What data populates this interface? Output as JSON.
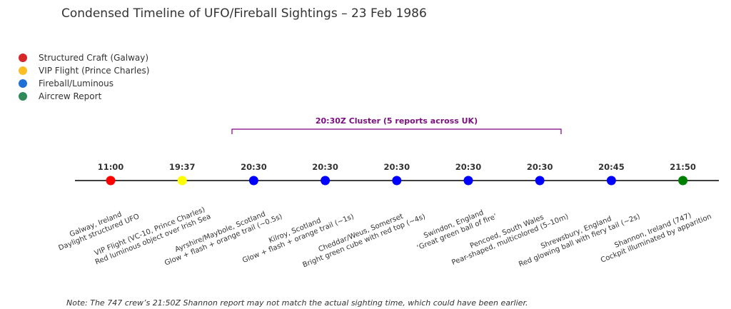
{
  "title": "Condensed Timeline of UFO/Fireball Sightings – 23 Feb 1986",
  "note": "Note: The 747 crew’s 21:50Z Shannon report may not match the actual sighting time, which could have been earlier.",
  "colors": {
    "structured_craft": "#d62728",
    "vip_flight": "#ffcc00",
    "fireball": "#0000ff",
    "aircrew": "#1e8c1e",
    "cluster": "#800080",
    "axis": "#000000"
  },
  "legend": [
    {
      "label": "Structured Craft (Galway)",
      "color": "#d62728"
    },
    {
      "label": "VIP Flight (Prince Charles)",
      "color": "#fbbf24"
    },
    {
      "label": "Fireball/Luminous",
      "color": "#1f6fd6"
    },
    {
      "label": "Aircrew Report",
      "color": "#2e8b57"
    }
  ],
  "chart_data": {
    "type": "timeline",
    "title": "Condensed Timeline of UFO/Fireball Sightings – 23 Feb 1986",
    "cluster": {
      "label": "20:30Z Cluster (5 reports across UK)",
      "from_event": 2,
      "to_event": 6
    },
    "events": [
      {
        "time": "11:00",
        "category": "Structured Craft (Galway)",
        "color": "#ff0000",
        "line1": "Galway, Ireland",
        "line2": "Daylight structured UFO"
      },
      {
        "time": "19:37",
        "category": "VIP Flight (Prince Charles)",
        "color": "#ffff00",
        "line1": "VIP Flight (VC-10, Prince Charles)",
        "line2": "Red luminous object over Irish Sea"
      },
      {
        "time": "20:30",
        "category": "Fireball/Luminous",
        "color": "#0000ff",
        "line1": "Ayrshire/Maybole, Scotland",
        "line2": "Glow + flash + orange trail (~0.5s)"
      },
      {
        "time": "20:30",
        "category": "Fireball/Luminous",
        "color": "#0000ff",
        "line1": "Kilroy, Scotland",
        "line2": "Glow + flash + orange trail (~1s)"
      },
      {
        "time": "20:30",
        "category": "Fireball/Luminous",
        "color": "#0000ff",
        "line1": "Cheddar/Weus, Somerset",
        "line2": "Bright green cube with red top (~4s)"
      },
      {
        "time": "20:30",
        "category": "Fireball/Luminous",
        "color": "#0000ff",
        "line1": "Swindon, England",
        "line2": "‘Great green ball of fire’"
      },
      {
        "time": "20:30",
        "category": "Fireball/Luminous",
        "color": "#0000ff",
        "line1": "Pencoed, South Wales",
        "line2": "Pear-shaped, multicolored (5–10m)"
      },
      {
        "time": "20:45",
        "category": "Fireball/Luminous",
        "color": "#0000ff",
        "line1": "Shrewsbury, England",
        "line2": "Red glowing ball with fiery tail (~2s)"
      },
      {
        "time": "21:50",
        "category": "Aircrew Report",
        "color": "#008000",
        "line1": "Shannon, Ireland (747)",
        "line2": "Cockpit illuminated by apparition"
      }
    ]
  }
}
